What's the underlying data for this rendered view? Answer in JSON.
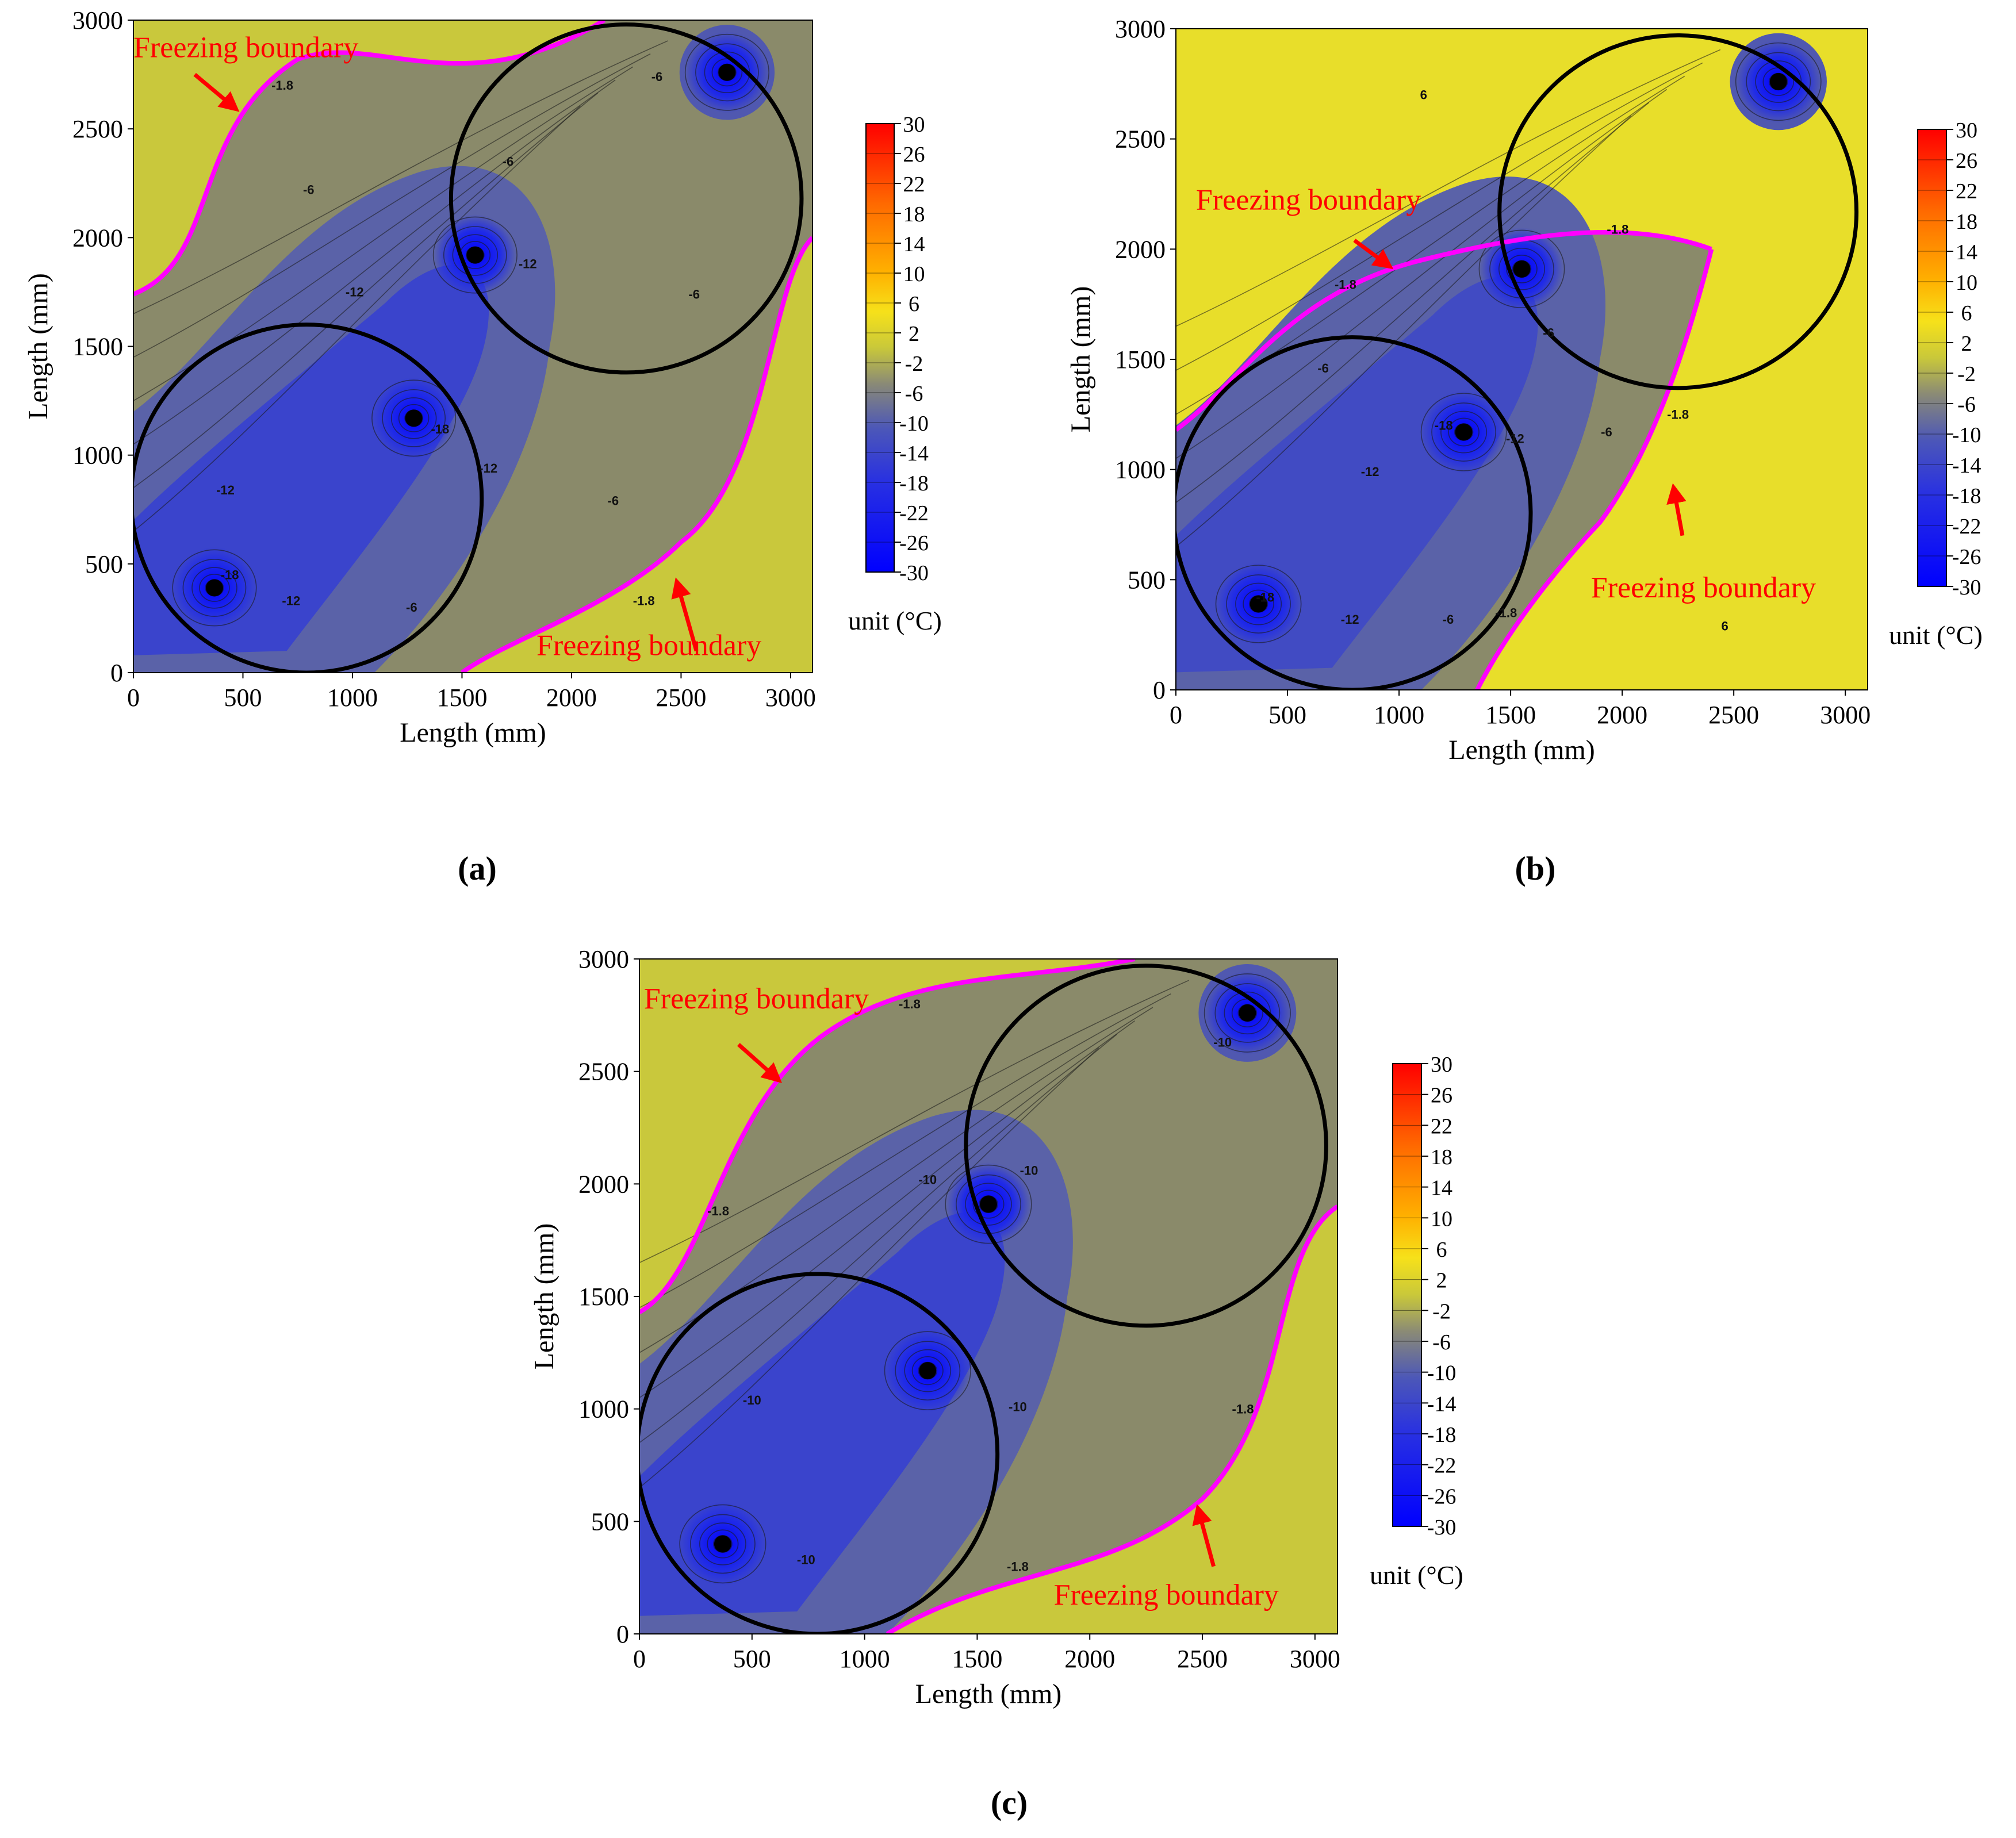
{
  "figure": {
    "panels": [
      "(a)",
      "(b)",
      "(c)"
    ]
  },
  "colors": {
    "freezing_line": "#ff00ff",
    "annotation": "#ff0000",
    "circle": "#000000",
    "pipe": "#000000"
  },
  "chart_data": [
    {
      "type": "contour",
      "panel": "a",
      "caption": "(a)",
      "xlabel": "Length (mm)",
      "ylabel": "Length (mm)",
      "xlim": [
        0,
        3100
      ],
      "ylim": [
        0,
        3000
      ],
      "xticks": [
        "0",
        "500",
        "1000",
        "1500",
        "2000",
        "2500",
        "3000"
      ],
      "yticks": [
        "0",
        "500",
        "1000",
        "1500",
        "2000",
        "2500",
        "3000"
      ],
      "colorbar": {
        "levels": [
          "30",
          "26",
          "22",
          "18",
          "14",
          "10",
          "6",
          "2",
          "-2",
          "-6",
          "-10",
          "-14",
          "-18",
          "-22",
          "-26",
          "-30"
        ],
        "unit": "unit (°C)"
      },
      "freezing_pipes": [
        {
          "x": 370,
          "y": 390
        },
        {
          "x": 1280,
          "y": 1170
        },
        {
          "x": 1560,
          "y": 1920
        },
        {
          "x": 2710,
          "y": 2760
        }
      ],
      "circles": [
        {
          "cx": 790,
          "cy": 800,
          "r": 800
        },
        {
          "cx": 2250,
          "cy": 2180,
          "r": 800
        }
      ],
      "contour_labels": [
        {
          "text": "-1.8",
          "x": 680,
          "y": 2680
        },
        {
          "text": "-6",
          "x": 800,
          "y": 2200
        },
        {
          "text": "-6",
          "x": 2390,
          "y": 2720
        },
        {
          "text": "-6",
          "x": 1710,
          "y": 2330
        },
        {
          "text": "-12",
          "x": 1010,
          "y": 1730
        },
        {
          "text": "-12",
          "x": 1800,
          "y": 1860
        },
        {
          "text": "-18",
          "x": 1400,
          "y": 1100
        },
        {
          "text": "-12",
          "x": 420,
          "y": 820
        },
        {
          "text": "-12",
          "x": 1620,
          "y": 920
        },
        {
          "text": "-12",
          "x": 720,
          "y": 310
        },
        {
          "text": "-6",
          "x": 1270,
          "y": 280
        },
        {
          "text": "-6",
          "x": 2190,
          "y": 770
        },
        {
          "text": "-6",
          "x": 2560,
          "y": 1720
        },
        {
          "text": "-1.8",
          "x": 2330,
          "y": 310
        },
        {
          "text": "-18",
          "x": 440,
          "y": 430
        }
      ],
      "annotations": [
        {
          "text": "Freezing boundary",
          "x": 0,
          "y": 2830
        },
        {
          "text": "Freezing boundary",
          "x": 1840,
          "y": 80
        }
      ]
    },
    {
      "type": "contour",
      "panel": "b",
      "caption": "(b)",
      "xlabel": "Length (mm)",
      "ylabel": "Length (mm)",
      "xlim": [
        0,
        3100
      ],
      "ylim": [
        0,
        3000
      ],
      "xticks": [
        "0",
        "500",
        "1000",
        "1500",
        "2000",
        "2500",
        "3000"
      ],
      "yticks": [
        "0",
        "500",
        "1000",
        "1500",
        "2000",
        "2500",
        "3000"
      ],
      "colorbar": {
        "levels": [
          "30",
          "26",
          "22",
          "18",
          "14",
          "10",
          "6",
          "2",
          "-2",
          "-6",
          "-10",
          "-14",
          "-18",
          "-22",
          "-26",
          "-30"
        ],
        "unit": "unit (°C)"
      },
      "freezing_pipes": [
        {
          "x": 370,
          "y": 390
        },
        {
          "x": 1290,
          "y": 1170
        },
        {
          "x": 1550,
          "y": 1910
        },
        {
          "x": 2700,
          "y": 2760
        }
      ],
      "circles": [
        {
          "cx": 790,
          "cy": 800,
          "r": 800
        },
        {
          "cx": 2250,
          "cy": 2170,
          "r": 800
        }
      ],
      "contour_labels": [
        {
          "text": "6",
          "x": 1110,
          "y": 2680
        },
        {
          "text": "-1.8",
          "x": 760,
          "y": 1820
        },
        {
          "text": "-1.8",
          "x": 1980,
          "y": 2070
        },
        {
          "text": "-6",
          "x": 660,
          "y": 1440
        },
        {
          "text": "-6",
          "x": 1670,
          "y": 1600
        },
        {
          "text": "-12",
          "x": 870,
          "y": 970
        },
        {
          "text": "-18",
          "x": 1200,
          "y": 1180
        },
        {
          "text": "-12",
          "x": 1520,
          "y": 1120
        },
        {
          "text": "-6",
          "x": 1930,
          "y": 1150
        },
        {
          "text": "-1.8",
          "x": 2250,
          "y": 1230
        },
        {
          "text": "-12",
          "x": 780,
          "y": 300
        },
        {
          "text": "-6",
          "x": 1220,
          "y": 300
        },
        {
          "text": "-18",
          "x": 400,
          "y": 400
        },
        {
          "text": "-1.8",
          "x": 1480,
          "y": 330
        },
        {
          "text": "6",
          "x": 2460,
          "y": 270
        }
      ],
      "annotations": [
        {
          "text": "Freezing boundary",
          "x": 90,
          "y": 2180
        },
        {
          "text": "Freezing boundary",
          "x": 1860,
          "y": 420
        }
      ]
    },
    {
      "type": "contour",
      "panel": "c",
      "caption": "(c)",
      "xlabel": "Length (mm)",
      "ylabel": "Length (mm)",
      "xlim": [
        0,
        3100
      ],
      "ylim": [
        0,
        3000
      ],
      "xticks": [
        "0",
        "500",
        "1000",
        "1500",
        "2000",
        "2500",
        "3000"
      ],
      "yticks": [
        "0",
        "500",
        "1000",
        "1500",
        "2000",
        "2500",
        "3000"
      ],
      "colorbar": {
        "levels": [
          "30",
          "26",
          "22",
          "18",
          "14",
          "10",
          "6",
          "2",
          "-2",
          "-6",
          "-10",
          "-14",
          "-18",
          "-22",
          "-26",
          "-30"
        ],
        "unit": "unit (°C)"
      },
      "freezing_pipes": [
        {
          "x": 370,
          "y": 400
        },
        {
          "x": 1280,
          "y": 1170
        },
        {
          "x": 1550,
          "y": 1910
        },
        {
          "x": 2700,
          "y": 2760
        }
      ],
      "circles": [
        {
          "cx": 790,
          "cy": 800,
          "r": 800
        },
        {
          "cx": 2250,
          "cy": 2170,
          "r": 800
        }
      ],
      "contour_labels": [
        {
          "text": "-1.8",
          "x": 1200,
          "y": 2780
        },
        {
          "text": "-1.8",
          "x": 350,
          "y": 1860
        },
        {
          "text": "-10",
          "x": 1280,
          "y": 2000
        },
        {
          "text": "-10",
          "x": 1730,
          "y": 2040
        },
        {
          "text": "-10",
          "x": 2590,
          "y": 2610
        },
        {
          "text": "-10",
          "x": 500,
          "y": 1020
        },
        {
          "text": "-10",
          "x": 1680,
          "y": 990
        },
        {
          "text": "-10",
          "x": 740,
          "y": 310
        },
        {
          "text": "-1.8",
          "x": 1680,
          "y": 280
        },
        {
          "text": "-1.8",
          "x": 2680,
          "y": 980
        }
      ],
      "annotations": [
        {
          "text": "Freezing boundary",
          "x": 20,
          "y": 2780
        },
        {
          "text": "Freezing boundary",
          "x": 1840,
          "y": 130
        }
      ]
    }
  ]
}
